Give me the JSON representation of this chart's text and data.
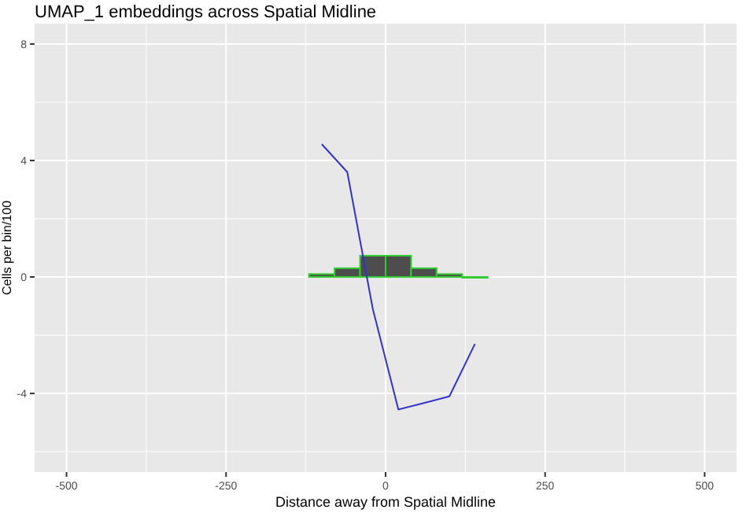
{
  "chart_data": {
    "type": "histogram",
    "title": "UMAP_1 embeddings across Spatial Midline",
    "xlabel": "Distance away from Spatial Midline",
    "ylabel": "Cells per bin/100",
    "xlim": [
      -550,
      550
    ],
    "ylim": [
      -6.7,
      8.7
    ],
    "xticks": [
      -500,
      -250,
      0,
      250,
      500
    ],
    "yticks": [
      -4,
      0,
      4,
      8
    ],
    "grid": true,
    "series": [
      {
        "color": "#4d4d4d",
        "bins": [
          -120,
          -80,
          -40,
          0,
          40,
          80,
          120,
          160
        ],
        "values": [
          0.1,
          0.3,
          0.73,
          0.73,
          0.3,
          0.1,
          0
        ]
      },
      {
        "type": "line",
        "color": "#3333cc",
        "x": [
          -100,
          -60,
          -20,
          20,
          60,
          100,
          140
        ],
        "values": [
          4.56,
          3.6,
          -1.1,
          -4.55,
          -4.33,
          -4.1,
          -2.3
        ]
      }
    ]
  }
}
